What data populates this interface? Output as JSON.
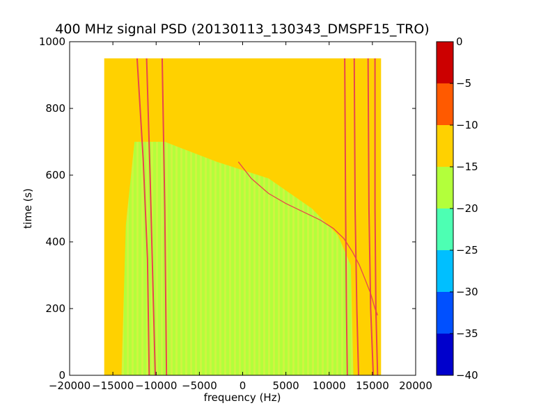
{
  "chart_data": {
    "type": "heatmap",
    "title": "400 MHz signal PSD (20130113_130343_DMSPF15_TRO)",
    "xlabel": "frequency (Hz)",
    "ylabel": "time (s)",
    "xlim": [
      -20000,
      20000
    ],
    "ylim": [
      0,
      1000
    ],
    "xticks": [
      -20000,
      -15000,
      -10000,
      -5000,
      0,
      5000,
      10000,
      15000,
      20000
    ],
    "xtick_labels": [
      "−20000",
      "−15000",
      "−10000",
      "−5000",
      "0",
      "5000",
      "10000",
      "15000",
      "20000"
    ],
    "yticks": [
      0,
      200,
      400,
      600,
      800,
      1000
    ],
    "ytick_labels": [
      "0",
      "200",
      "400",
      "600",
      "800",
      "1000"
    ],
    "data_extent": {
      "freq": [
        -16000,
        16000
      ],
      "time": [
        0,
        950
      ]
    },
    "colorbar": {
      "levels": [
        -40,
        -35,
        -30,
        -25,
        -20,
        -15,
        -10,
        -5,
        0
      ],
      "tick_labels": [
        "−40",
        "−35",
        "−30",
        "−25",
        "−20",
        "−15",
        "−10",
        "−5",
        "0"
      ],
      "colors": [
        "#0000cc",
        "#0050ff",
        "#00bfff",
        "#4dffb3",
        "#b3ff3b",
        "#ffd100",
        "#ff5a00",
        "#cc0000"
      ]
    },
    "background_level_color": "#ffd100",
    "low_power_color": "#b3ff3b",
    "low_power_region": {
      "note_free": true,
      "boundary_top": [
        [
          -12500,
          700
        ],
        [
          -9000,
          700
        ],
        [
          -3000,
          640
        ],
        [
          3000,
          590
        ],
        [
          8000,
          500
        ],
        [
          11000,
          420
        ],
        [
          12500,
          330
        ],
        [
          12800,
          0
        ]
      ],
      "boundary_left": [
        [
          -12500,
          700
        ],
        [
          -13500,
          450
        ],
        [
          -14000,
          0
        ]
      ]
    },
    "carrier_lines": [
      {
        "color": "#e8464c",
        "points": [
          [
            -12200,
            950
          ],
          [
            -11500,
            650
          ],
          [
            -11000,
            350
          ],
          [
            -10800,
            0
          ]
        ]
      },
      {
        "color": "#e8464c",
        "points": [
          [
            -11100,
            950
          ],
          [
            -10700,
            600
          ],
          [
            -10400,
            300
          ],
          [
            -10100,
            0
          ]
        ]
      },
      {
        "color": "#e8464c",
        "points": [
          [
            -9300,
            950
          ],
          [
            -9000,
            500
          ],
          [
            -8800,
            0
          ]
        ]
      },
      {
        "color": "#e8464c",
        "points": [
          [
            11800,
            950
          ],
          [
            11900,
            500
          ],
          [
            12000,
            200
          ],
          [
            12100,
            0
          ]
        ]
      },
      {
        "color": "#e8464c",
        "points": [
          [
            12900,
            950
          ],
          [
            13000,
            500
          ],
          [
            13200,
            200
          ],
          [
            13400,
            0
          ]
        ]
      },
      {
        "color": "#e8464c",
        "points": [
          [
            14500,
            950
          ],
          [
            14600,
            500
          ],
          [
            14800,
            200
          ],
          [
            15100,
            0
          ]
        ]
      },
      {
        "color": "#e8464c",
        "points": [
          [
            15300,
            950
          ],
          [
            15300,
            500
          ],
          [
            15400,
            200
          ],
          [
            15600,
            0
          ]
        ]
      }
    ],
    "doppler_curve": {
      "color": "#e8464c",
      "points": [
        [
          -500,
          640
        ],
        [
          1000,
          590
        ],
        [
          3000,
          545
        ],
        [
          5000,
          515
        ],
        [
          7000,
          490
        ],
        [
          9000,
          465
        ],
        [
          10500,
          440
        ],
        [
          11700,
          410
        ],
        [
          12700,
          370
        ],
        [
          13500,
          330
        ],
        [
          14200,
          285
        ],
        [
          14800,
          245
        ],
        [
          15300,
          200
        ],
        [
          15600,
          180
        ]
      ]
    }
  }
}
